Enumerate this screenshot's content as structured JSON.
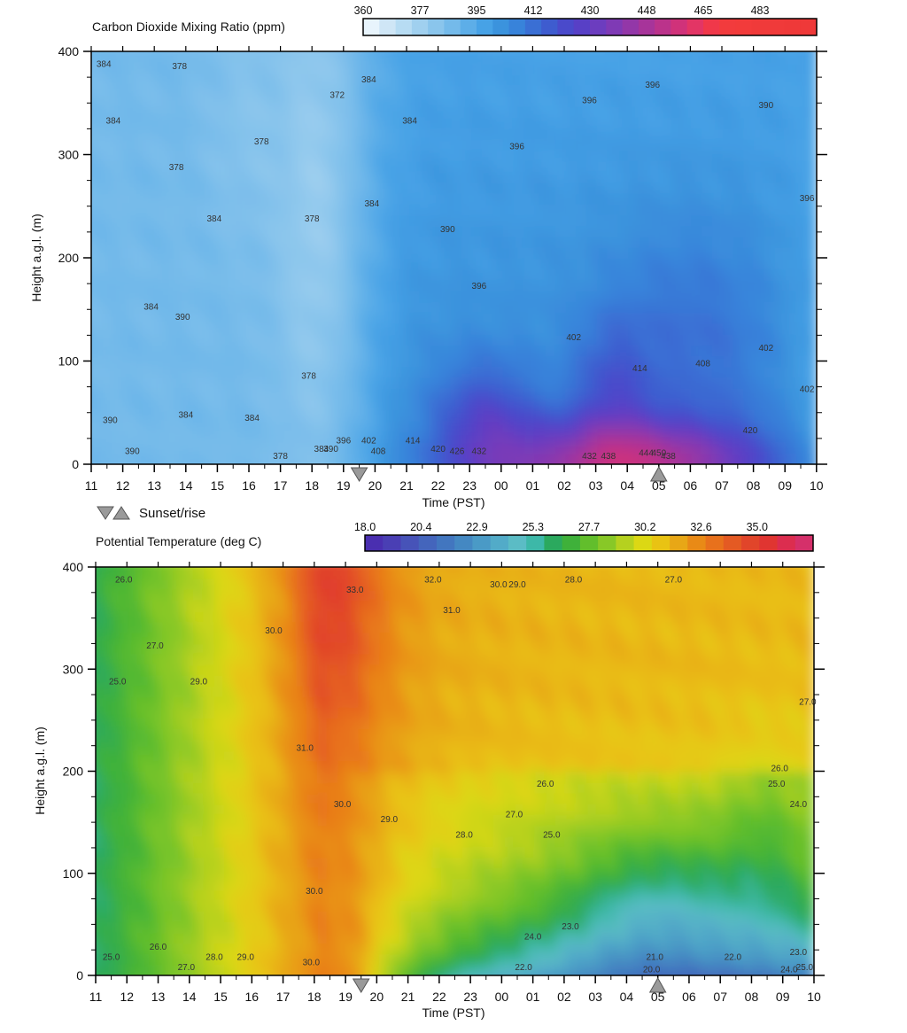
{
  "chart_data": [
    {
      "type": "heatmap",
      "title": "Carbon Dioxide  Mixing Ratio  (ppm)",
      "xlabel": "Time (PST)",
      "ylabel": "Height a.g.l. (m)",
      "x_ticks": [
        "11",
        "12",
        "13",
        "14",
        "15",
        "16",
        "17",
        "18",
        "19",
        "20",
        "21",
        "22",
        "23",
        "00",
        "01",
        "02",
        "03",
        "04",
        "05",
        "06",
        "07",
        "08",
        "09",
        "10"
      ],
      "y_ticks": [
        0,
        100,
        200,
        300,
        400
      ],
      "ylim": [
        0,
        400
      ],
      "colorbar": {
        "range": [
          360,
          500
        ],
        "tick_labels": [
          "360",
          "377",
          "395",
          "412",
          "430",
          "448",
          "465",
          "483"
        ],
        "colors": [
          "#e8f4fc",
          "#cfe6f6",
          "#b7dcf3",
          "#a0d0ef",
          "#8ac5ec",
          "#74baea",
          "#5daee8",
          "#47a2e6",
          "#3b93dd",
          "#3883da",
          "#3a6fd4",
          "#3e5ccf",
          "#4a4acb",
          "#5840c6",
          "#6c3dbf",
          "#7f3ab5",
          "#9337a8",
          "#a7349a",
          "#bb338b",
          "#d0327a",
          "#e33565",
          "#f0384a",
          "#f23b3d",
          "#f23b3b",
          "#f03a3a",
          "#f03a3a",
          "#ef3939",
          "#ef3939"
        ]
      },
      "contour_labels": [
        {
          "t": 11.4,
          "z": 385,
          "text": "384"
        },
        {
          "t": 13.8,
          "z": 383,
          "text": "378"
        },
        {
          "t": 19.8,
          "z": 370,
          "text": "384"
        },
        {
          "t": 18.8,
          "z": 355,
          "text": "372"
        },
        {
          "t": 11.7,
          "z": 330,
          "text": "384"
        },
        {
          "t": 16.4,
          "z": 310,
          "text": "378"
        },
        {
          "t": 21.1,
          "z": 330,
          "text": "384"
        },
        {
          "t": 26.8,
          "z": 350,
          "text": "396"
        },
        {
          "t": 28.8,
          "z": 365,
          "text": "396"
        },
        {
          "t": 32.4,
          "z": 345,
          "text": "390"
        },
        {
          "t": 24.5,
          "z": 305,
          "text": "396"
        },
        {
          "t": 13.7,
          "z": 285,
          "text": "378"
        },
        {
          "t": 14.9,
          "z": 235,
          "text": "384"
        },
        {
          "t": 18.0,
          "z": 235,
          "text": "378"
        },
        {
          "t": 19.9,
          "z": 250,
          "text": "384"
        },
        {
          "t": 22.3,
          "z": 225,
          "text": "390"
        },
        {
          "t": 33.7,
          "z": 255,
          "text": "396"
        },
        {
          "t": 12.9,
          "z": 150,
          "text": "384"
        },
        {
          "t": 13.9,
          "z": 140,
          "text": "390"
        },
        {
          "t": 23.3,
          "z": 170,
          "text": "396"
        },
        {
          "t": 26.3,
          "z": 120,
          "text": "402"
        },
        {
          "t": 28.4,
          "z": 90,
          "text": "414"
        },
        {
          "t": 30.4,
          "z": 95,
          "text": "408"
        },
        {
          "t": 32.4,
          "z": 110,
          "text": "402"
        },
        {
          "t": 33.7,
          "z": 70,
          "text": "402"
        },
        {
          "t": 17.9,
          "z": 83,
          "text": "378"
        },
        {
          "t": 11.6,
          "z": 40,
          "text": "390"
        },
        {
          "t": 14.0,
          "z": 45,
          "text": "384"
        },
        {
          "t": 16.1,
          "z": 42,
          "text": "384"
        },
        {
          "t": 12.3,
          "z": 10,
          "text": "390"
        },
        {
          "t": 17.0,
          "z": 5,
          "text": "378"
        },
        {
          "t": 18.3,
          "z": 12,
          "text": "384"
        },
        {
          "t": 18.6,
          "z": 12,
          "text": "390"
        },
        {
          "t": 19.0,
          "z": 20,
          "text": "396"
        },
        {
          "t": 19.8,
          "z": 20,
          "text": "402"
        },
        {
          "t": 20.1,
          "z": 10,
          "text": "408"
        },
        {
          "t": 21.2,
          "z": 20,
          "text": "414"
        },
        {
          "t": 22.0,
          "z": 12,
          "text": "420"
        },
        {
          "t": 22.6,
          "z": 10,
          "text": "426"
        },
        {
          "t": 23.3,
          "z": 10,
          "text": "432"
        },
        {
          "t": 31.9,
          "z": 30,
          "text": "420"
        },
        {
          "t": 26.8,
          "z": 5,
          "text": "432"
        },
        {
          "t": 27.4,
          "z": 5,
          "text": "438"
        },
        {
          "t": 28.6,
          "z": 8,
          "text": "444"
        },
        {
          "t": 29.0,
          "z": 8,
          "text": "450"
        },
        {
          "t": 29.3,
          "z": 5,
          "text": "438"
        }
      ]
    },
    {
      "type": "heatmap",
      "title": "Potential Temperature (deg C)",
      "xlabel": "Time (PST)",
      "ylabel": "Height a.g.l. (m)",
      "x_ticks": [
        "11",
        "12",
        "13",
        "14",
        "15",
        "16",
        "17",
        "18",
        "19",
        "20",
        "21",
        "22",
        "23",
        "00",
        "01",
        "02",
        "03",
        "04",
        "05",
        "06",
        "07",
        "08",
        "09",
        "10"
      ],
      "y_ticks": [
        0,
        100,
        200,
        300,
        400
      ],
      "ylim": [
        0,
        400
      ],
      "colorbar": {
        "range": [
          18,
          35
        ],
        "tick_labels": [
          "18.0",
          "20.4",
          "22.9",
          "25.3",
          "27.7",
          "30.2",
          "32.6",
          "35.0"
        ],
        "colors": [
          "#4a2fb0",
          "#4a3fb4",
          "#4753b8",
          "#4465bc",
          "#4276bf",
          "#4488c2",
          "#4a9ac6",
          "#52abc8",
          "#5bbcc5",
          "#3db8a8",
          "#2ba95e",
          "#3fb13a",
          "#62be2c",
          "#88c827",
          "#b5d11f",
          "#dcd814",
          "#e9c313",
          "#e8a716",
          "#e98a16",
          "#e8711c",
          "#e45a23",
          "#e1452a",
          "#e03531",
          "#dc2d4f",
          "#d5306a"
        ]
      },
      "contour_labels": [
        {
          "t": 11.9,
          "z": 385,
          "text": "26.0"
        },
        {
          "t": 19.3,
          "z": 375,
          "text": "33.0"
        },
        {
          "t": 21.8,
          "z": 385,
          "text": "32.0"
        },
        {
          "t": 22.4,
          "z": 355,
          "text": "31.0"
        },
        {
          "t": 23.9,
          "z": 380,
          "text": "30.0"
        },
        {
          "t": 24.5,
          "z": 380,
          "text": "29.0"
        },
        {
          "t": 26.3,
          "z": 385,
          "text": "28.0"
        },
        {
          "t": 29.5,
          "z": 385,
          "text": "27.0"
        },
        {
          "t": 16.7,
          "z": 335,
          "text": "30.0"
        },
        {
          "t": 12.9,
          "z": 320,
          "text": "27.0"
        },
        {
          "t": 11.7,
          "z": 285,
          "text": "25.0"
        },
        {
          "t": 14.3,
          "z": 285,
          "text": "29.0"
        },
        {
          "t": 33.8,
          "z": 265,
          "text": "27.0"
        },
        {
          "t": 17.7,
          "z": 220,
          "text": "31.0"
        },
        {
          "t": 25.4,
          "z": 185,
          "text": "26.0"
        },
        {
          "t": 32.9,
          "z": 200,
          "text": "26.0"
        },
        {
          "t": 32.8,
          "z": 185,
          "text": "25.0"
        },
        {
          "t": 33.5,
          "z": 165,
          "text": "24.0"
        },
        {
          "t": 18.9,
          "z": 165,
          "text": "30.0"
        },
        {
          "t": 20.4,
          "z": 150,
          "text": "29.0"
        },
        {
          "t": 24.4,
          "z": 155,
          "text": "27.0"
        },
        {
          "t": 22.8,
          "z": 135,
          "text": "28.0"
        },
        {
          "t": 25.6,
          "z": 135,
          "text": "25.0"
        },
        {
          "t": 18.0,
          "z": 80,
          "text": "30.0"
        },
        {
          "t": 26.2,
          "z": 45,
          "text": "23.0"
        },
        {
          "t": 25.0,
          "z": 35,
          "text": "24.0"
        },
        {
          "t": 24.7,
          "z": 5,
          "text": "22.0"
        },
        {
          "t": 28.9,
          "z": 15,
          "text": "21.0"
        },
        {
          "t": 28.8,
          "z": 3,
          "text": "20.0"
        },
        {
          "t": 31.4,
          "z": 15,
          "text": "22.0"
        },
        {
          "t": 33.5,
          "z": 20,
          "text": "23.0"
        },
        {
          "t": 33.2,
          "z": 3,
          "text": "24.0"
        },
        {
          "t": 33.7,
          "z": 5,
          "text": "25.0"
        },
        {
          "t": 11.5,
          "z": 15,
          "text": "25.0"
        },
        {
          "t": 13.0,
          "z": 25,
          "text": "26.0"
        },
        {
          "t": 13.9,
          "z": 5,
          "text": "27.0"
        },
        {
          "t": 14.8,
          "z": 15,
          "text": "28.0"
        },
        {
          "t": 15.8,
          "z": 15,
          "text": "29.0"
        },
        {
          "t": 17.9,
          "z": 10,
          "text": "30.0"
        }
      ]
    }
  ],
  "legend": {
    "label": "Sunset/rise",
    "sunset_time": 19.5,
    "sunrise_time": 29.0
  }
}
